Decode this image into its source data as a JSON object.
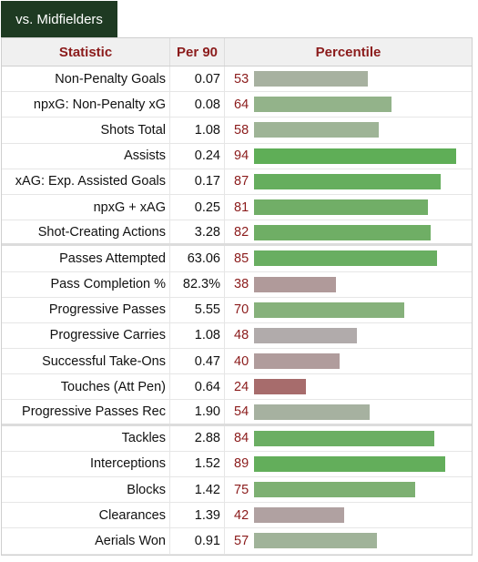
{
  "tab": {
    "label": "vs. Midfielders"
  },
  "headers": {
    "statistic": "Statistic",
    "per90": "Per 90",
    "percentile": "Percentile"
  },
  "colors": {
    "high": "#5fae57",
    "mid_high": "#8fb57f",
    "neutral": "#a7b1a0",
    "mid_low": "#b09a9a",
    "low": "#a76c6c"
  },
  "rows": [
    {
      "stat": "Non-Penalty Goals",
      "per90": "0.07",
      "percentile": 53,
      "color": "#a7b1a0"
    },
    {
      "stat": "npxG: Non-Penalty xG",
      "per90": "0.08",
      "percentile": 64,
      "color": "#93b38a"
    },
    {
      "stat": "Shots Total",
      "per90": "1.08",
      "percentile": 58,
      "color": "#9eb496"
    },
    {
      "stat": "Assists",
      "per90": "0.24",
      "percentile": 94,
      "color": "#5fae57"
    },
    {
      "stat": "xAG: Exp. Assisted Goals",
      "per90": "0.17",
      "percentile": 87,
      "color": "#66ae5e"
    },
    {
      "stat": "npxG + xAG",
      "per90": "0.25",
      "percentile": 81,
      "color": "#71ae67"
    },
    {
      "stat": "Shot-Creating Actions",
      "per90": "3.28",
      "percentile": 82,
      "color": "#6fae65",
      "sep": true
    },
    {
      "stat": "Passes Attempted",
      "per90": "63.06",
      "percentile": 85,
      "color": "#69ae61"
    },
    {
      "stat": "Pass Completion %",
      "per90": "82.3%",
      "percentile": 38,
      "color": "#b09a9a"
    },
    {
      "stat": "Progressive Passes",
      "per90": "5.55",
      "percentile": 70,
      "color": "#86b17b"
    },
    {
      "stat": "Progressive Carries",
      "per90": "1.08",
      "percentile": 48,
      "color": "#b1abab"
    },
    {
      "stat": "Successful Take-Ons",
      "per90": "0.47",
      "percentile": 40,
      "color": "#b09c9c"
    },
    {
      "stat": "Touches (Att Pen)",
      "per90": "0.64",
      "percentile": 24,
      "color": "#a76c6c"
    },
    {
      "stat": "Progressive Passes Rec",
      "per90": "1.90",
      "percentile": 54,
      "color": "#a6b1a0",
      "sep": true
    },
    {
      "stat": "Tackles",
      "per90": "2.88",
      "percentile": 84,
      "color": "#6bae63"
    },
    {
      "stat": "Interceptions",
      "per90": "1.52",
      "percentile": 89,
      "color": "#63ae5b"
    },
    {
      "stat": "Blocks",
      "per90": "1.42",
      "percentile": 75,
      "color": "#7db072"
    },
    {
      "stat": "Clearances",
      "per90": "1.39",
      "percentile": 42,
      "color": "#b0a1a1"
    },
    {
      "stat": "Aerials Won",
      "per90": "0.91",
      "percentile": 57,
      "color": "#a0b399"
    }
  ]
}
